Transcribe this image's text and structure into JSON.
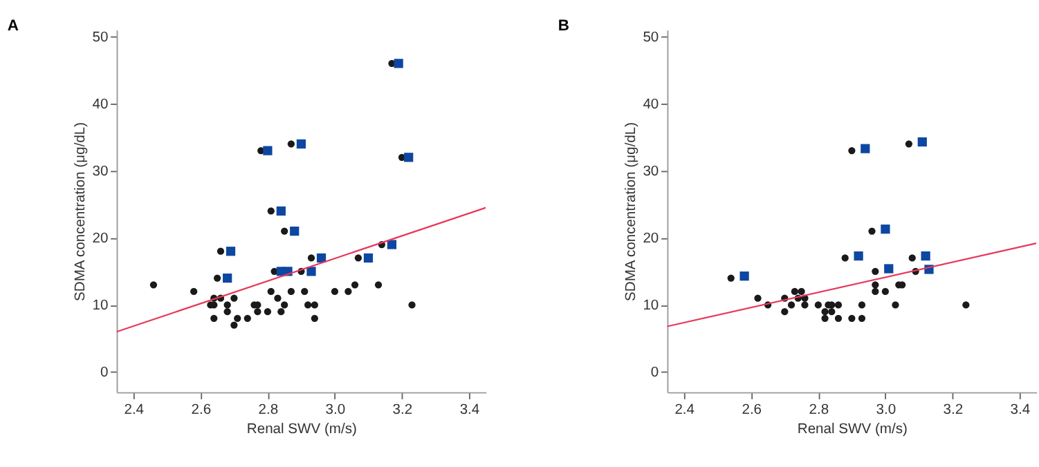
{
  "chart_data": [
    {
      "type": "scatter",
      "title": "A",
      "xlabel": "Renal SWV (m/s)",
      "ylabel": "SDMA concentration (μg/dL)",
      "xlim": [
        2.35,
        3.45
      ],
      "xticks": [
        2.4,
        2.6,
        2.8,
        {
          "value": 3.0,
          "label": "3.0"
        },
        3.2,
        3.4
      ],
      "ylim": [
        -3,
        51
      ],
      "yticks": [
        0,
        10,
        20,
        30,
        40,
        50
      ],
      "grid": false,
      "series": [
        {
          "marker": "circle",
          "color": "#1a1a1a",
          "x": [
            2.46,
            2.58,
            2.63,
            2.64,
            2.64,
            2.64,
            2.65,
            2.66,
            2.66,
            2.68,
            2.68,
            2.7,
            2.7,
            2.71,
            2.74,
            2.76,
            2.77,
            2.77,
            2.8,
            2.81,
            2.83,
            2.84,
            2.85,
            2.87,
            2.91,
            2.92,
            2.94,
            2.94,
            3.0,
            3.04,
            3.06,
            3.13,
            3.23,
            2.78,
            2.81,
            2.85,
            2.82,
            2.9,
            2.93,
            2.87,
            3.07,
            3.14,
            3.17,
            3.2
          ],
          "values": [
            13,
            12,
            10,
            10,
            11,
            8,
            14,
            11,
            18,
            10,
            9,
            11,
            7,
            8,
            8,
            10,
            10,
            9,
            9,
            12,
            11,
            9,
            10,
            12,
            12,
            10,
            10,
            8,
            12,
            12,
            13,
            13,
            10,
            33,
            24,
            21,
            15,
            15,
            17,
            34,
            17,
            19,
            46,
            32
          ]
        },
        {
          "marker": "square",
          "color": "#0d47a1",
          "x": [
            2.69,
            2.68,
            2.8,
            2.84,
            2.88,
            2.84,
            2.86,
            2.93,
            2.96,
            2.9,
            3.1,
            3.17,
            3.19,
            3.22
          ],
          "values": [
            18,
            14,
            33,
            24,
            21,
            15,
            15,
            15,
            17,
            34,
            17,
            19,
            46,
            32
          ]
        },
        {
          "type": "line",
          "marker": "none",
          "color": "#e8385a",
          "x": [
            2.35,
            3.45
          ],
          "values": [
            6,
            24.5
          ]
        }
      ]
    },
    {
      "type": "scatter",
      "title": "B",
      "xlabel": "Renal SWV (m/s)",
      "ylabel": "SDMA concentration (μg/dL)",
      "xlim": [
        2.35,
        3.45
      ],
      "xticks": [
        2.4,
        2.6,
        2.8,
        {
          "value": 3.0,
          "label": "3.0"
        },
        3.2,
        3.4
      ],
      "ylim": [
        -3,
        51
      ],
      "yticks": [
        0,
        10,
        20,
        30,
        40,
        50
      ],
      "grid": false,
      "series": [
        {
          "marker": "circle",
          "color": "#1a1a1a",
          "x": [
            2.54,
            2.62,
            2.65,
            2.7,
            2.7,
            2.72,
            2.73,
            2.74,
            2.75,
            2.76,
            2.76,
            2.8,
            2.82,
            2.82,
            2.83,
            2.84,
            2.84,
            2.86,
            2.86,
            2.88,
            2.9,
            2.93,
            2.93,
            2.96,
            2.97,
            2.97,
            2.97,
            3.0,
            3.03,
            3.04,
            3.05,
            3.08,
            3.09,
            3.24,
            2.9,
            3.07
          ],
          "values": [
            14,
            11,
            10,
            11,
            9,
            10,
            12,
            11,
            12,
            11,
            10,
            10,
            9,
            8,
            10,
            10,
            9,
            10,
            8,
            17,
            8,
            10,
            8,
            21,
            15,
            13,
            12,
            12,
            10,
            13,
            13,
            17,
            15,
            10,
            33,
            34
          ]
        },
        {
          "marker": "square",
          "color": "#0d47a1",
          "x": [
            2.58,
            2.92,
            3.0,
            3.01,
            3.12,
            3.13,
            2.94,
            3.11
          ],
          "values": [
            14.3,
            17.3,
            21.3,
            15.4,
            17.3,
            15.3,
            33.3,
            34.3
          ]
        },
        {
          "type": "line",
          "marker": "none",
          "color": "#e8385a",
          "x": [
            2.35,
            3.45
          ],
          "values": [
            6.8,
            19.2
          ]
        }
      ]
    }
  ]
}
